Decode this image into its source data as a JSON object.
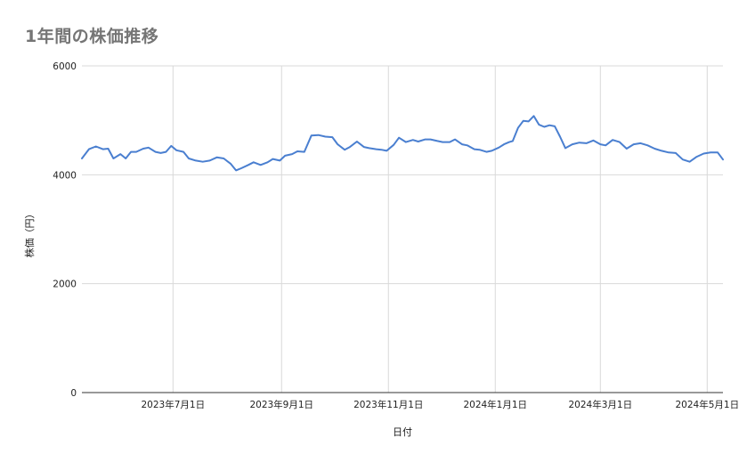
{
  "chart_data": {
    "type": "line",
    "title": "1年間の株価推移",
    "xlabel": "日付",
    "ylabel": "株価（円）",
    "ylim": [
      0,
      6000
    ],
    "y_ticks": [
      0,
      2000,
      4000,
      6000
    ],
    "x_range": [
      "2023-05-10",
      "2024-05-10"
    ],
    "x_ticks": [
      {
        "date": "2023-07-01",
        "label": "2023年7月1日"
      },
      {
        "date": "2023-09-01",
        "label": "2023年9月1日"
      },
      {
        "date": "2023-11-01",
        "label": "2023年11月1日"
      },
      {
        "date": "2024-01-01",
        "label": "2024年1月1日"
      },
      {
        "date": "2024-03-01",
        "label": "2024年3月1日"
      },
      {
        "date": "2024-05-01",
        "label": "2024年5月1日"
      }
    ],
    "grid": true,
    "legend": "none",
    "line_color": "#4a7fd0",
    "series": [
      {
        "x": [
          "2023-05-10",
          "2023-05-14",
          "2023-05-18",
          "2023-05-22",
          "2023-05-25",
          "2023-05-28",
          "2023-06-01",
          "2023-06-04",
          "2023-06-07",
          "2023-06-10",
          "2023-06-14",
          "2023-06-17",
          "2023-06-21",
          "2023-06-24",
          "2023-06-27",
          "2023-06-30",
          "2023-07-03",
          "2023-07-07",
          "2023-07-10",
          "2023-07-14",
          "2023-07-18",
          "2023-07-22",
          "2023-07-26",
          "2023-07-30",
          "2023-08-03",
          "2023-08-06",
          "2023-08-09",
          "2023-08-13",
          "2023-08-16",
          "2023-08-20",
          "2023-08-24",
          "2023-08-27",
          "2023-08-31",
          "2023-09-03",
          "2023-09-07",
          "2023-09-10",
          "2023-09-14",
          "2023-09-18",
          "2023-09-22",
          "2023-09-26",
          "2023-09-30",
          "2023-10-03",
          "2023-10-07",
          "2023-10-10",
          "2023-10-14",
          "2023-10-18",
          "2023-10-21",
          "2023-10-25",
          "2023-10-28",
          "2023-10-31",
          "2023-11-04",
          "2023-11-07",
          "2023-11-11",
          "2023-11-15",
          "2023-11-18",
          "2023-11-22",
          "2023-11-25",
          "2023-11-29",
          "2023-12-02",
          "2023-12-06",
          "2023-12-09",
          "2023-12-13",
          "2023-12-16",
          "2023-12-20",
          "2023-12-23",
          "2023-12-27",
          "2023-12-30",
          "2024-01-03",
          "2024-01-06",
          "2024-01-09",
          "2024-01-11",
          "2024-01-14",
          "2024-01-17",
          "2024-01-20",
          "2024-01-23",
          "2024-01-26",
          "2024-01-29",
          "2024-02-01",
          "2024-02-04",
          "2024-02-07",
          "2024-02-10",
          "2024-02-14",
          "2024-02-18",
          "2024-02-22",
          "2024-02-26",
          "2024-03-01",
          "2024-03-04",
          "2024-03-08",
          "2024-03-12",
          "2024-03-16",
          "2024-03-20",
          "2024-03-24",
          "2024-03-28",
          "2024-04-01",
          "2024-04-05",
          "2024-04-09",
          "2024-04-13",
          "2024-04-17",
          "2024-04-21",
          "2024-04-25",
          "2024-04-29",
          "2024-05-03",
          "2024-05-07",
          "2024-05-10"
        ],
        "y": [
          4300,
          4470,
          4520,
          4470,
          4480,
          4300,
          4380,
          4300,
          4420,
          4420,
          4480,
          4500,
          4420,
          4400,
          4420,
          4530,
          4450,
          4420,
          4300,
          4260,
          4240,
          4260,
          4320,
          4300,
          4200,
          4080,
          4120,
          4180,
          4230,
          4180,
          4230,
          4290,
          4260,
          4350,
          4380,
          4430,
          4420,
          4720,
          4730,
          4700,
          4690,
          4560,
          4460,
          4510,
          4610,
          4510,
          4490,
          4470,
          4460,
          4440,
          4550,
          4680,
          4600,
          4640,
          4610,
          4650,
          4650,
          4620,
          4600,
          4600,
          4650,
          4560,
          4540,
          4470,
          4460,
          4420,
          4440,
          4500,
          4560,
          4600,
          4620,
          4860,
          4990,
          4980,
          5080,
          4920,
          4880,
          4910,
          4890,
          4700,
          4490,
          4560,
          4590,
          4580,
          4630,
          4560,
          4540,
          4640,
          4600,
          4480,
          4560,
          4580,
          4540,
          4480,
          4440,
          4410,
          4400,
          4280,
          4240,
          4330,
          4390,
          4410,
          4410,
          4280
        ]
      }
    ]
  }
}
